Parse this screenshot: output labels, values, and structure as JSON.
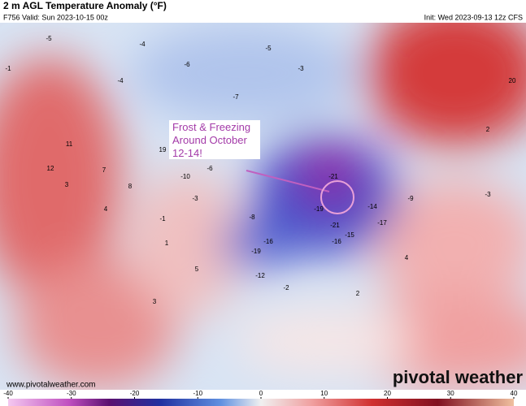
{
  "header": {
    "title": "2 m AGL Temperature Anomaly (°F)",
    "valid": "F756 Valid: Sun 2023-10-15 00z",
    "init": "Init: Wed 2023-09-13 12z CFS"
  },
  "annotation": "Frost & Freezing Around October 12-14!",
  "website": "www.pivotalweather.com",
  "logo": "pivotal weather",
  "map_labels": [
    -5,
    -1,
    -4,
    -6,
    -4,
    -7,
    -5,
    -3,
    11,
    12,
    7,
    8,
    4,
    3,
    -10,
    -6,
    -3,
    -19,
    -16,
    -21,
    -19,
    -15,
    -21,
    -16,
    -12,
    -8,
    -17,
    -14,
    -9,
    -2,
    2,
    4,
    5,
    -1,
    1,
    19,
    20,
    2,
    -3,
    3
  ],
  "colorbar": {
    "range": [
      -40,
      40
    ],
    "ticks": [
      -40,
      -30,
      -20,
      -10,
      0,
      10,
      20,
      30,
      40
    ]
  }
}
